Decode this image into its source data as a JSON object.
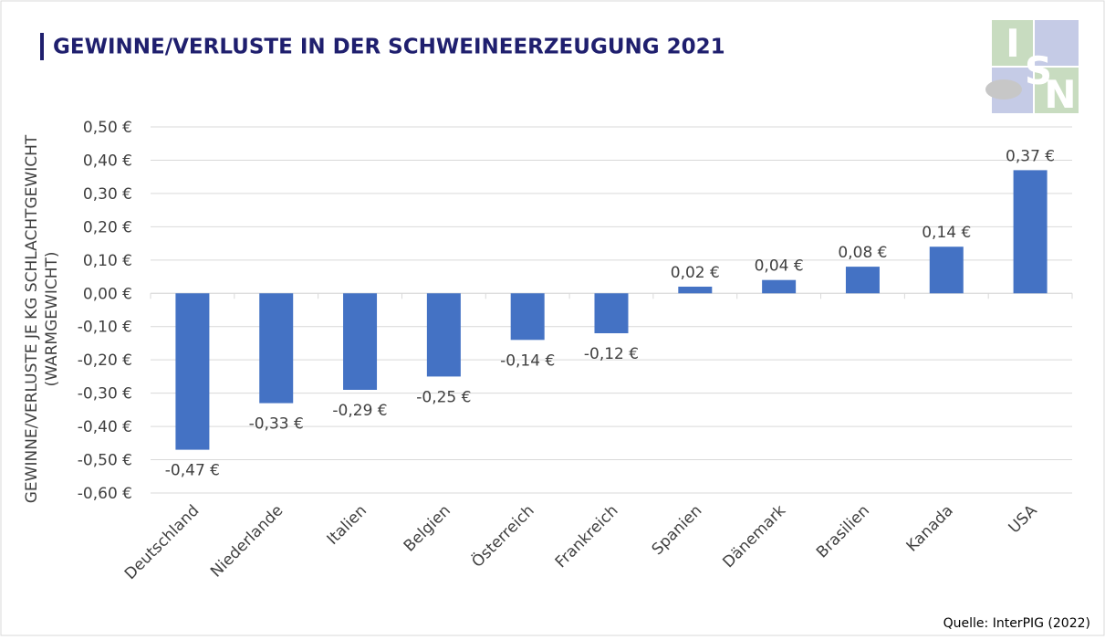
{
  "chart_data": {
    "type": "bar",
    "title": "GEWINNE/VERLUSTE IN DER SCHWEINEERZEUGUNG 2021",
    "ylabel": [
      "GEWINNE/VERLUSTE  JE KG SCHLACHTGEWICHT",
      "(WARMGEWICHT)"
    ],
    "categories": [
      "Deutschland",
      "Niederlande",
      "Italien",
      "Belgien",
      "Österreich",
      "Frankreich",
      "Spanien",
      "Dänemark",
      "Brasilien",
      "Kanada",
      "USA"
    ],
    "values": [
      -0.47,
      -0.33,
      -0.29,
      -0.25,
      -0.14,
      -0.12,
      0.02,
      0.04,
      0.08,
      0.14,
      0.37
    ],
    "value_labels": [
      "-0,47 €",
      "-0,33 €",
      "-0,29 €",
      "-0,25 €",
      "-0,14 €",
      "-0,12 €",
      "0,02 €",
      "0,04 €",
      "0,08 €",
      "0,14 €",
      "0,37 €"
    ],
    "color": "#4472c4",
    "ylim": [
      -0.6,
      0.5
    ],
    "yticks": [
      {
        "value": 0.5,
        "label": "0,50 €"
      },
      {
        "value": 0.4,
        "label": "0,40 €"
      },
      {
        "value": 0.3,
        "label": "0,30 €"
      },
      {
        "value": 0.2,
        "label": "0,20 €"
      },
      {
        "value": 0.1,
        "label": "0,10 €"
      },
      {
        "value": 0,
        "label": "0,00 €"
      },
      {
        "value": -0.1,
        "label": "-0,10 €"
      },
      {
        "value": -0.2,
        "label": "-0,20 €"
      },
      {
        "value": -0.3,
        "label": "-0,30 €"
      },
      {
        "value": -0.4,
        "label": "-0,40 €"
      },
      {
        "value": -0.5,
        "label": "-0,50 €"
      },
      {
        "value": -0.6,
        "label": "-0,60 €"
      }
    ],
    "grid": true,
    "source": "Quelle: InterPIG (2022)",
    "logo_letters": [
      "I",
      "S",
      "N"
    ]
  }
}
